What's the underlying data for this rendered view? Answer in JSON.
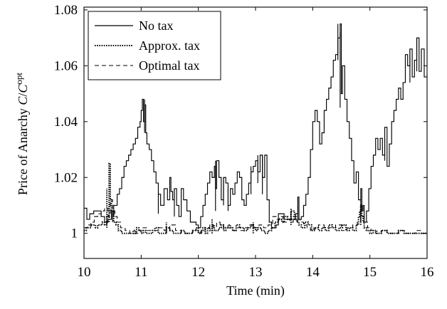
{
  "chart_data": {
    "type": "line",
    "title": "",
    "xlabel": "Time (min)",
    "ylabel_prefix": "Price of Anarchy ",
    "ylabel_c": "C",
    "ylabel_slash": "/",
    "ylabel_c2": "C",
    "ylabel_sup": "opt",
    "xlim": [
      10,
      16
    ],
    "ylim": [
      0.991,
      1.081
    ],
    "x_ticks": [
      10,
      11,
      12,
      13,
      14,
      15,
      16
    ],
    "x_tick_labels": [
      "10",
      "11",
      "12",
      "13",
      "14",
      "15",
      "16"
    ],
    "y_ticks": [
      1,
      1.02,
      1.04,
      1.06,
      1.08
    ],
    "y_tick_labels": [
      "1",
      "1.02",
      "1.04",
      "1.06",
      "1.08"
    ],
    "grid": false,
    "legend_position": "top-left",
    "series": [
      {
        "name": "No tax",
        "style": "solid",
        "x": [
          10.0,
          10.05,
          10.1,
          10.17,
          10.24,
          10.3,
          10.36,
          10.42,
          10.48,
          10.5,
          10.52,
          10.58,
          10.62,
          10.66,
          10.7,
          10.74,
          10.78,
          10.82,
          10.86,
          10.9,
          10.94,
          10.98,
          11.0,
          11.02,
          11.04,
          11.06,
          11.08,
          11.1,
          11.14,
          11.18,
          11.22,
          11.26,
          11.3,
          11.34,
          11.4,
          11.46,
          11.5,
          11.52,
          11.55,
          11.58,
          11.62,
          11.66,
          11.7,
          11.74,
          11.8,
          11.86,
          11.92,
          11.96,
          12.0,
          12.04,
          12.08,
          12.12,
          12.16,
          12.2,
          12.24,
          12.28,
          12.3,
          12.32,
          12.36,
          12.4,
          12.44,
          12.48,
          12.52,
          12.56,
          12.6,
          12.64,
          12.68,
          12.72,
          12.76,
          12.8,
          12.84,
          12.88,
          12.92,
          12.96,
          13.0,
          13.04,
          13.08,
          13.12,
          13.16,
          13.2,
          13.24,
          13.28,
          13.32,
          13.36,
          13.4,
          13.5,
          13.6,
          13.7,
          13.74,
          13.76,
          13.8,
          13.84,
          13.88,
          13.92,
          13.96,
          14.0,
          14.04,
          14.08,
          14.12,
          14.16,
          14.2,
          14.24,
          14.28,
          14.32,
          14.36,
          14.4,
          14.44,
          14.48,
          14.5,
          14.52,
          14.56,
          14.6,
          14.64,
          14.68,
          14.72,
          14.76,
          14.8,
          14.84,
          14.86,
          14.88,
          14.9,
          14.94,
          14.98,
          15.02,
          15.06,
          15.1,
          15.14,
          15.18,
          15.22,
          15.26,
          15.3,
          15.34,
          15.38,
          15.42,
          15.46,
          15.5,
          15.54,
          15.58,
          15.62,
          15.66,
          15.7,
          15.74,
          15.78,
          15.82,
          15.86,
          15.9,
          15.95,
          16.0
        ],
        "y": [
          1.009,
          1.005,
          1.007,
          1.008,
          1.008,
          1.006,
          1.004,
          1.005,
          1.008,
          1.006,
          1.01,
          1.014,
          1.016,
          1.02,
          1.024,
          1.026,
          1.028,
          1.03,
          1.032,
          1.034,
          1.038,
          1.04,
          1.044,
          1.048,
          1.04,
          1.046,
          1.036,
          1.032,
          1.03,
          1.026,
          1.022,
          1.018,
          1.014,
          1.01,
          1.016,
          1.012,
          1.02,
          1.015,
          1.012,
          1.016,
          1.01,
          1.006,
          1.016,
          1.012,
          1.008,
          1.004,
          1.004,
          1.003,
          1.002,
          1.006,
          1.01,
          1.014,
          1.018,
          1.022,
          1.02,
          1.024,
          1.016,
          1.026,
          1.02,
          1.012,
          1.02,
          1.018,
          1.01,
          1.016,
          1.014,
          1.018,
          1.022,
          1.02,
          1.012,
          1.01,
          1.014,
          1.018,
          1.022,
          1.024,
          1.026,
          1.022,
          1.028,
          1.02,
          1.028,
          1.012,
          1.004,
          1.002,
          1.002,
          1.003,
          1.007,
          1.005,
          1.005,
          1.007,
          1.013,
          1.005,
          1.006,
          1.01,
          1.014,
          1.02,
          1.03,
          1.04,
          1.044,
          1.04,
          1.032,
          1.036,
          1.044,
          1.048,
          1.052,
          1.056,
          1.062,
          1.064,
          1.07,
          1.075,
          1.05,
          1.06,
          1.048,
          1.04,
          1.034,
          1.026,
          1.018,
          1.022,
          1.012,
          1.016,
          1.008,
          1.01,
          1.004,
          1.008,
          1.016,
          1.024,
          1.028,
          1.034,
          1.03,
          1.034,
          1.028,
          1.038,
          1.024,
          1.032,
          1.04,
          1.044,
          1.048,
          1.052,
          1.048,
          1.054,
          1.064,
          1.06,
          1.066,
          1.056,
          1.062,
          1.07,
          1.058,
          1.066,
          1.056,
          1.057
        ],
        "spikes": [
          {
            "x": 10.5,
            "y0": 1.004,
            "y1": 1.008
          },
          {
            "x": 11.06,
            "y0": 1.036,
            "y1": 1.048
          },
          {
            "x": 11.3,
            "y0": 1.007,
            "y1": 1.014
          },
          {
            "x": 11.58,
            "y0": 1.006,
            "y1": 1.016
          },
          {
            "x": 12.3,
            "y0": 1.008,
            "y1": 1.026
          },
          {
            "x": 12.44,
            "y0": 1.01,
            "y1": 1.02
          },
          {
            "x": 12.52,
            "y0": 1.008,
            "y1": 1.016
          },
          {
            "x": 12.92,
            "y0": 1.014,
            "y1": 1.024
          },
          {
            "x": 13.04,
            "y0": 1.018,
            "y1": 1.028
          },
          {
            "x": 13.12,
            "y0": 1.014,
            "y1": 1.028
          },
          {
            "x": 13.74,
            "y0": 1.004,
            "y1": 1.013
          },
          {
            "x": 14.44,
            "y0": 1.062,
            "y1": 1.075
          },
          {
            "x": 14.48,
            "y0": 1.045,
            "y1": 1.072
          },
          {
            "x": 14.84,
            "y0": 1.004,
            "y1": 1.012
          },
          {
            "x": 15.26,
            "y0": 1.026,
            "y1": 1.034
          },
          {
            "x": 15.7,
            "y0": 1.054,
            "y1": 1.066
          },
          {
            "x": 15.82,
            "y0": 1.058,
            "y1": 1.07
          }
        ]
      },
      {
        "name": "Approx. tax",
        "style": "dotted",
        "x": [
          10.0,
          10.04,
          10.08,
          10.12,
          10.16,
          10.2,
          10.24,
          10.28,
          10.32,
          10.36,
          10.4,
          10.44,
          10.46,
          10.48,
          10.52,
          10.56,
          10.6,
          10.66,
          10.72,
          10.8,
          10.86,
          10.9,
          10.92,
          10.96,
          11.0,
          11.04,
          11.08,
          11.14,
          11.2,
          11.24,
          11.3,
          11.36,
          11.44,
          11.5,
          11.56,
          11.62,
          11.7,
          11.76,
          11.82,
          11.9,
          11.96,
          12.0,
          12.04,
          12.08,
          12.12,
          12.16,
          12.2,
          12.24,
          12.28,
          12.32,
          12.36,
          12.4,
          12.44,
          12.48,
          12.52,
          12.56,
          12.6,
          12.66,
          12.72,
          12.8,
          12.86,
          12.92,
          12.96,
          13.0,
          13.04,
          13.1,
          13.16,
          13.22,
          13.28,
          13.34,
          13.4,
          13.46,
          13.5,
          13.56,
          13.62,
          13.68,
          13.72,
          13.76,
          13.8,
          13.86,
          13.92,
          13.98,
          14.04,
          14.1,
          14.16,
          14.22,
          14.28,
          14.34,
          14.4,
          14.46,
          14.52,
          14.58,
          14.64,
          14.7,
          14.76,
          14.8,
          14.82,
          14.84,
          14.86,
          14.88,
          14.9,
          14.94,
          15.0,
          15.06,
          15.12,
          15.2,
          15.3,
          15.4,
          15.5,
          15.6,
          15.7,
          15.8,
          15.9,
          16.0
        ],
        "y": [
          1.001,
          1.002,
          1.002,
          1.003,
          1.003,
          1.002,
          1.003,
          1.003,
          1.004,
          1.003,
          1.006,
          1.025,
          1.012,
          1.008,
          1.004,
          1.003,
          1.001,
          1.0,
          1.0,
          1.0,
          1.001,
          1.0,
          1.002,
          1.001,
          1.0,
          1.001,
          1.0,
          1.0,
          1.001,
          1.002,
          1.0,
          1.0,
          1.002,
          1.001,
          1.0,
          1.0,
          1.001,
          1.0,
          1.0,
          1.001,
          1.002,
          1.0,
          1.001,
          1.002,
          1.0,
          1.002,
          1.001,
          1.003,
          1.001,
          1.001,
          1.002,
          1.003,
          1.001,
          1.002,
          1.003,
          1.002,
          1.001,
          1.003,
          1.002,
          1.001,
          1.002,
          1.003,
          1.002,
          1.001,
          1.002,
          1.001,
          1.0,
          1.001,
          1.002,
          1.004,
          1.005,
          1.004,
          1.006,
          1.005,
          1.008,
          1.005,
          1.004,
          1.003,
          1.002,
          1.004,
          1.003,
          1.001,
          1.002,
          1.001,
          1.002,
          1.001,
          1.003,
          1.002,
          1.001,
          1.002,
          1.003,
          1.001,
          1.002,
          1.001,
          1.003,
          1.006,
          1.008,
          1.01,
          1.006,
          1.004,
          1.002,
          1.001,
          1.0,
          1.001,
          1.0,
          1.001,
          1.0,
          1.0,
          1.001,
          1.0,
          1.0,
          1.0,
          1.0,
          1.0
        ],
        "spikes": [
          {
            "x": 10.44,
            "y0": 1.004,
            "y1": 1.025
          },
          {
            "x": 10.4,
            "y0": 1.002,
            "y1": 1.016
          },
          {
            "x": 11.44,
            "y0": 1.0,
            "y1": 1.004
          },
          {
            "x": 12.24,
            "y0": 1.0,
            "y1": 1.005
          },
          {
            "x": 12.96,
            "y0": 1.0,
            "y1": 1.004
          },
          {
            "x": 13.62,
            "y0": 1.003,
            "y1": 1.009
          },
          {
            "x": 14.84,
            "y0": 1.003,
            "y1": 1.01
          }
        ]
      },
      {
        "name": "Optimal tax",
        "style": "dashed",
        "x": [
          10.0,
          10.06,
          10.12,
          10.18,
          10.24,
          10.3,
          10.36,
          10.42,
          10.46,
          10.5,
          10.54,
          10.58,
          10.64,
          10.72,
          10.8,
          10.9,
          10.96,
          11.02,
          11.1,
          11.2,
          11.3,
          11.4,
          11.5,
          11.6,
          11.7,
          11.8,
          11.9,
          12.0,
          12.06,
          12.12,
          12.2,
          12.26,
          12.32,
          12.38,
          12.44,
          12.5,
          12.58,
          12.66,
          12.74,
          12.82,
          12.9,
          12.98,
          13.06,
          13.14,
          13.22,
          13.3,
          13.36,
          13.42,
          13.48,
          13.54,
          13.6,
          13.66,
          13.72,
          13.78,
          13.84,
          13.9,
          13.96,
          14.02,
          14.1,
          14.2,
          14.3,
          14.4,
          14.5,
          14.6,
          14.7,
          14.78,
          14.84,
          14.9,
          14.96,
          15.02,
          15.1,
          15.2,
          15.3,
          15.4,
          15.5,
          15.6,
          15.7,
          15.8,
          15.9,
          16.0
        ],
        "y": [
          1.002,
          1.003,
          1.004,
          1.006,
          1.007,
          1.008,
          1.009,
          1.006,
          1.012,
          1.008,
          1.006,
          1.004,
          1.002,
          1.001,
          1.0,
          1.0,
          1.001,
          1.002,
          1.001,
          1.001,
          1.002,
          1.001,
          1.003,
          1.001,
          1.0,
          1.0,
          1.001,
          1.0,
          1.001,
          1.002,
          1.003,
          1.002,
          1.004,
          1.003,
          1.002,
          1.002,
          1.001,
          1.002,
          1.001,
          1.002,
          1.003,
          1.002,
          1.003,
          1.002,
          1.003,
          1.006,
          1.005,
          1.006,
          1.004,
          1.005,
          1.004,
          1.006,
          1.005,
          1.004,
          1.003,
          1.002,
          1.001,
          1.002,
          1.003,
          1.002,
          1.002,
          1.003,
          1.001,
          1.002,
          1.003,
          1.004,
          1.006,
          1.004,
          1.002,
          1.001,
          1.0,
          1.001,
          1.0,
          1.0,
          1.001,
          1.0,
          1.0,
          1.001,
          1.0,
          1.0
        ]
      }
    ]
  }
}
